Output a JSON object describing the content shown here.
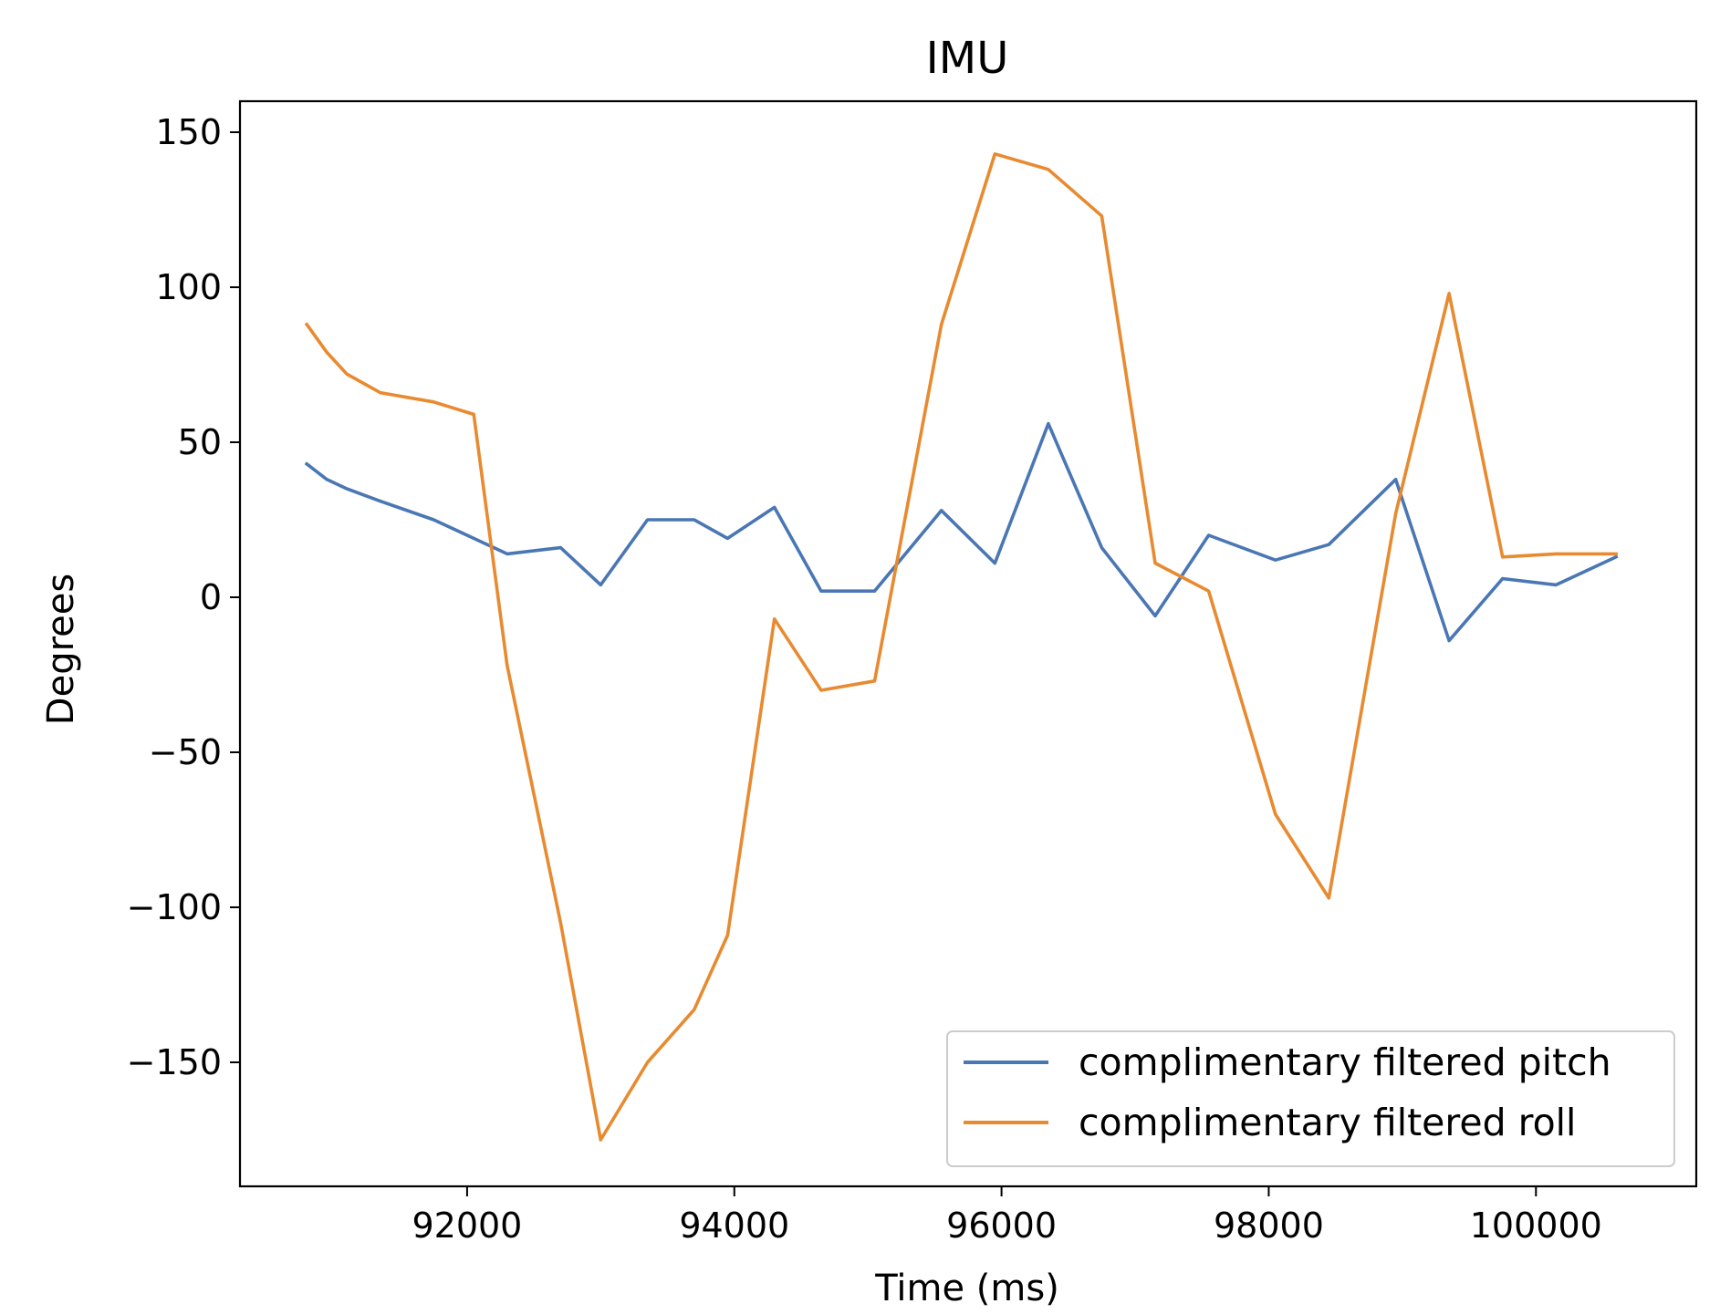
{
  "chart_data": {
    "type": "line",
    "title": "IMU",
    "xlabel": "Time (ms)",
    "ylabel": "Degrees",
    "xlim": [
      90300,
      101200
    ],
    "ylim": [
      -190,
      160
    ],
    "xticks": [
      92000,
      94000,
      96000,
      98000,
      100000
    ],
    "yticks": [
      150,
      100,
      50,
      0,
      -50,
      -100,
      -150
    ],
    "xtick_labels": [
      "92000",
      "94000",
      "96000",
      "98000",
      "100000"
    ],
    "ytick_labels": [
      "150",
      "100",
      "50",
      "0",
      "−50",
      "−100",
      "−150"
    ],
    "grid": false,
    "legend_position": "lower-right",
    "x": [
      90800,
      90950,
      91100,
      91350,
      91750,
      92050,
      92300,
      92700,
      93000,
      93350,
      93700,
      93950,
      94300,
      94650,
      95050,
      95550,
      95950,
      96350,
      96750,
      97150,
      97550,
      98050,
      98450,
      98950,
      99350,
      99750,
      100150,
      100600
    ],
    "series": [
      {
        "name": "complimentary filtered pitch",
        "color": "#4a77b4",
        "values": [
          43,
          38,
          35,
          31,
          25,
          19,
          14,
          16,
          4,
          25,
          25,
          19,
          29,
          2,
          2,
          28,
          11,
          56,
          16,
          -6,
          20,
          12,
          17,
          38,
          -14,
          6,
          4,
          13
        ]
      },
      {
        "name": "complimentary filtered roll",
        "color": "#e88a30",
        "values": [
          88,
          79,
          72,
          66,
          63,
          59,
          -22,
          -105,
          -175,
          -150,
          -133,
          -109,
          -7,
          -30,
          -27,
          88,
          143,
          138,
          123,
          11,
          2,
          -70,
          -97,
          27,
          98,
          13,
          14,
          14
        ]
      }
    ]
  }
}
